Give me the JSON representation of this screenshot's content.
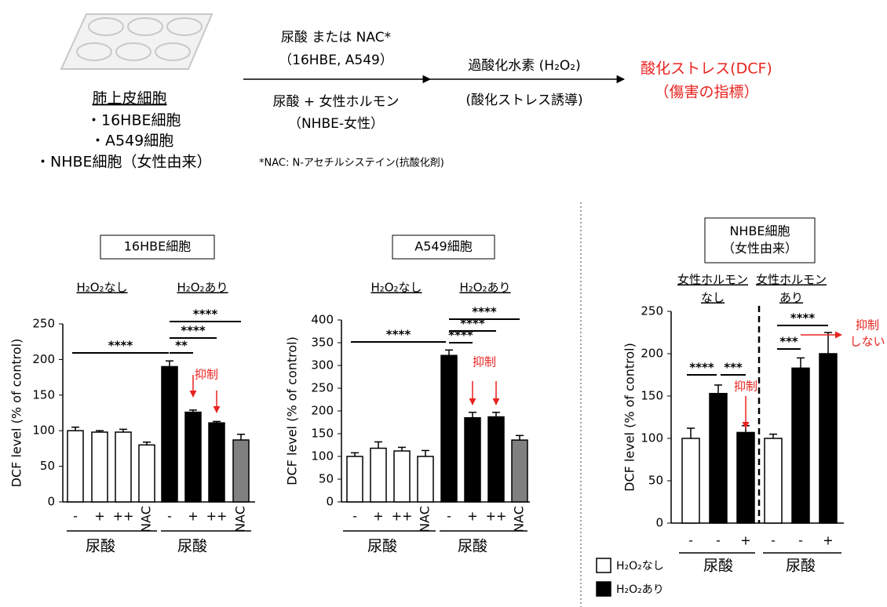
{
  "diagram": {
    "cell_title": "肺上皮細胞",
    "cells": [
      "・16HBE細胞",
      "・A549細胞",
      "・NHBE細胞（女性由来）"
    ],
    "treatment_top": [
      "尿酸 または NAC*",
      "（16HBE, A549）"
    ],
    "treatment_bottom": [
      "尿酸 + 女性ホルモン",
      "（NHBE-女性）"
    ],
    "step2": [
      "過酸化水素 (H₂O₂)",
      "(酸化ストレス誘導)"
    ],
    "result": [
      "酸化ストレス(DCF)",
      "（傷害の指標）"
    ],
    "footnote": "*NAC: N-アセチルシステイン(抗酸化剤)"
  },
  "chart_data": [
    {
      "type": "bar",
      "title": [
        "16HBE細胞"
      ],
      "group_headers": [
        [
          "H₂O₂なし"
        ],
        [
          "H₂O₂あり"
        ]
      ],
      "ylabel": "DCF level (% of control)",
      "categories": [
        "-",
        "+",
        "++",
        "NAC",
        "-",
        "+",
        "++",
        "NAC"
      ],
      "group_labels": [
        "尿酸",
        "尿酸"
      ],
      "values": [
        100,
        98,
        98,
        80,
        190,
        126,
        111,
        87
      ],
      "errors": [
        5,
        2,
        4,
        4,
        8,
        3,
        2,
        8
      ],
      "colors": [
        "#ffffff",
        "#ffffff",
        "#ffffff",
        "#ffffff",
        "#000000",
        "#000000",
        "#000000",
        "#808080"
      ],
      "ylim": [
        0,
        250
      ],
      "yticks": [
        0,
        50,
        100,
        150,
        200,
        250
      ],
      "significance": [
        "****",
        "****",
        "****",
        "**"
      ],
      "annotations": [
        [
          "抑制"
        ]
      ]
    },
    {
      "type": "bar",
      "title": [
        "A549細胞"
      ],
      "group_headers": [
        [
          "H₂O₂なし"
        ],
        [
          "H₂O₂あり"
        ]
      ],
      "ylabel": "DCF level (% of control)",
      "categories": [
        "-",
        "+",
        "++",
        "NAC",
        "-",
        "+",
        "++",
        "NAC"
      ],
      "group_labels": [
        "尿酸",
        "尿酸"
      ],
      "values": [
        100,
        118,
        112,
        100,
        322,
        185,
        187,
        136
      ],
      "errors": [
        8,
        14,
        8,
        13,
        12,
        12,
        10,
        10
      ],
      "colors": [
        "#ffffff",
        "#ffffff",
        "#ffffff",
        "#ffffff",
        "#000000",
        "#000000",
        "#000000",
        "#808080"
      ],
      "ylim": [
        0,
        400
      ],
      "yticks": [
        0,
        50,
        100,
        150,
        200,
        250,
        300,
        350,
        400
      ],
      "significance": [
        "****",
        "****",
        "****",
        "****"
      ],
      "annotations": [
        [
          "抑制"
        ]
      ]
    },
    {
      "type": "bar",
      "title": [
        "NHBE細胞",
        "（女性由来）"
      ],
      "group_headers": [
        [
          "女性ホルモン",
          "なし"
        ],
        [
          "女性ホルモン",
          "あり"
        ]
      ],
      "ylabel": "DCF level (% of control)",
      "categories": [
        "-",
        "-",
        "+",
        "-",
        "-",
        "+"
      ],
      "group_labels": [
        "尿酸",
        "尿酸"
      ],
      "values": [
        100,
        153,
        107,
        100,
        183,
        200
      ],
      "errors": [
        12,
        10,
        8,
        5,
        12,
        25
      ],
      "colors": [
        "#ffffff",
        "#000000",
        "#000000",
        "#ffffff",
        "#000000",
        "#000000"
      ],
      "ylim": [
        0,
        250
      ],
      "yticks": [
        0,
        50,
        100,
        150,
        200,
        250
      ],
      "significance": [
        "****",
        "***",
        "***",
        "****"
      ],
      "annotations": [
        [
          "抑制"
        ],
        [
          "抑制",
          "しない"
        ]
      ],
      "legend": [
        {
          "name": "H₂O₂なし",
          "color": "#ffffff"
        },
        {
          "name": "H₂O₂あり",
          "color": "#000000"
        }
      ]
    }
  ]
}
